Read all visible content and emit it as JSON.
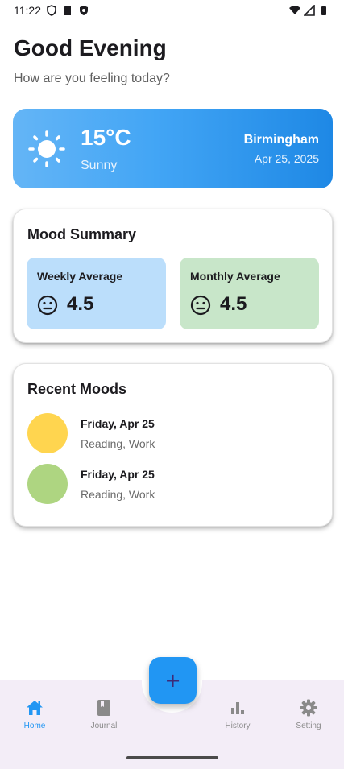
{
  "status_bar": {
    "time": "11:22",
    "icons_left": [
      "shield-icon",
      "sd-card-icon",
      "shield-badge-icon"
    ],
    "icons_right": [
      "wifi-icon",
      "signal-icon",
      "battery-icon"
    ]
  },
  "header": {
    "greeting": "Good Evening",
    "subtitle": "How are you feeling today?"
  },
  "weather": {
    "temperature": "15°C",
    "condition": "Sunny",
    "city": "Birmingham",
    "date": "Apr 25, 2025",
    "icon": "sun-icon",
    "gradient": [
      "#64b5f6",
      "#1e88e5"
    ]
  },
  "mood_summary": {
    "title": "Mood Summary",
    "weekly": {
      "label": "Weekly Average",
      "value": "4.5",
      "icon": "neutral-face-icon",
      "color": "#bbdefb"
    },
    "monthly": {
      "label": "Monthly Average",
      "value": "4.5",
      "icon": "neutral-face-icon",
      "color": "#c8e6c9"
    }
  },
  "recent_moods": {
    "title": "Recent Moods",
    "items": [
      {
        "day": "Friday, Apr 25",
        "tags": "Reading, Work",
        "color": "#ffd54f"
      },
      {
        "day": "Friday, Apr 25",
        "tags": "Reading, Work",
        "color": "#aed581"
      }
    ]
  },
  "fab": {
    "label": "+",
    "color": "#2196f3"
  },
  "bottom_nav": {
    "active": "home",
    "accent": "#2196f3",
    "items": [
      {
        "label": "Home",
        "icon": "home-icon"
      },
      {
        "label": "Journal",
        "icon": "journal-icon"
      },
      {
        "label": "History",
        "icon": "bar-chart-icon"
      },
      {
        "label": "Setting",
        "icon": "gear-icon"
      }
    ]
  }
}
